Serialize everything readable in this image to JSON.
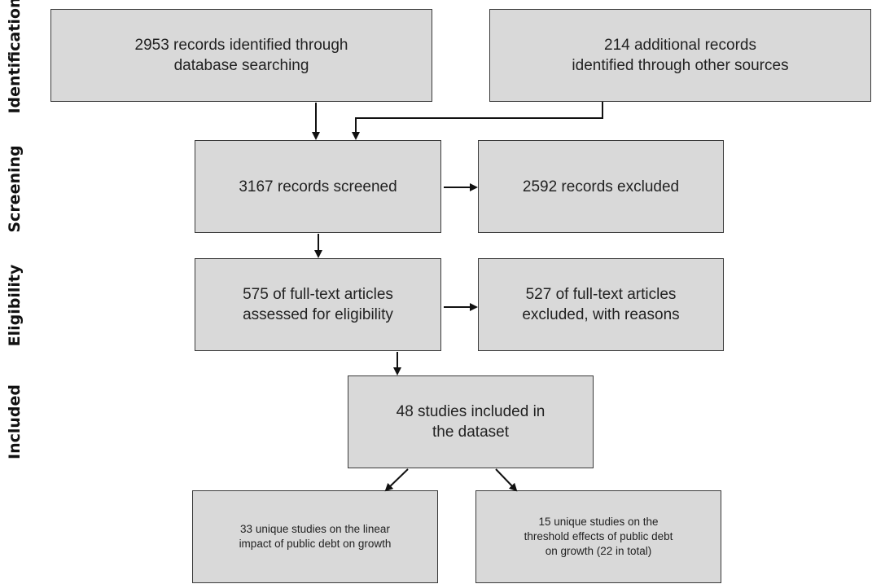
{
  "stages": {
    "identification": "Identification",
    "screening": "Screening",
    "eligibility": "Eligibility",
    "included": "Included"
  },
  "boxes": {
    "database_records": "2953 records identified through\ndatabase searching",
    "other_records": "214 additional records\nidentified through other sources",
    "screened": "3167 records screened",
    "excluded": "2592 records excluded",
    "assessed": "575 of full-text articles\nassessed for eligibility",
    "fulltext_excluded": "527 of full-text articles\nexcluded, with reasons",
    "included": "48 studies included in\nthe dataset",
    "linear": "33 unique studies on the linear\nimpact of public debt on growth",
    "threshold": "15 unique studies on the\nthreshold effects of public debt\non growth (22 in total)"
  },
  "colors": {
    "box_fill": "#d9d9d9",
    "box_border": "#3a3a3a",
    "arrow": "#111111"
  }
}
